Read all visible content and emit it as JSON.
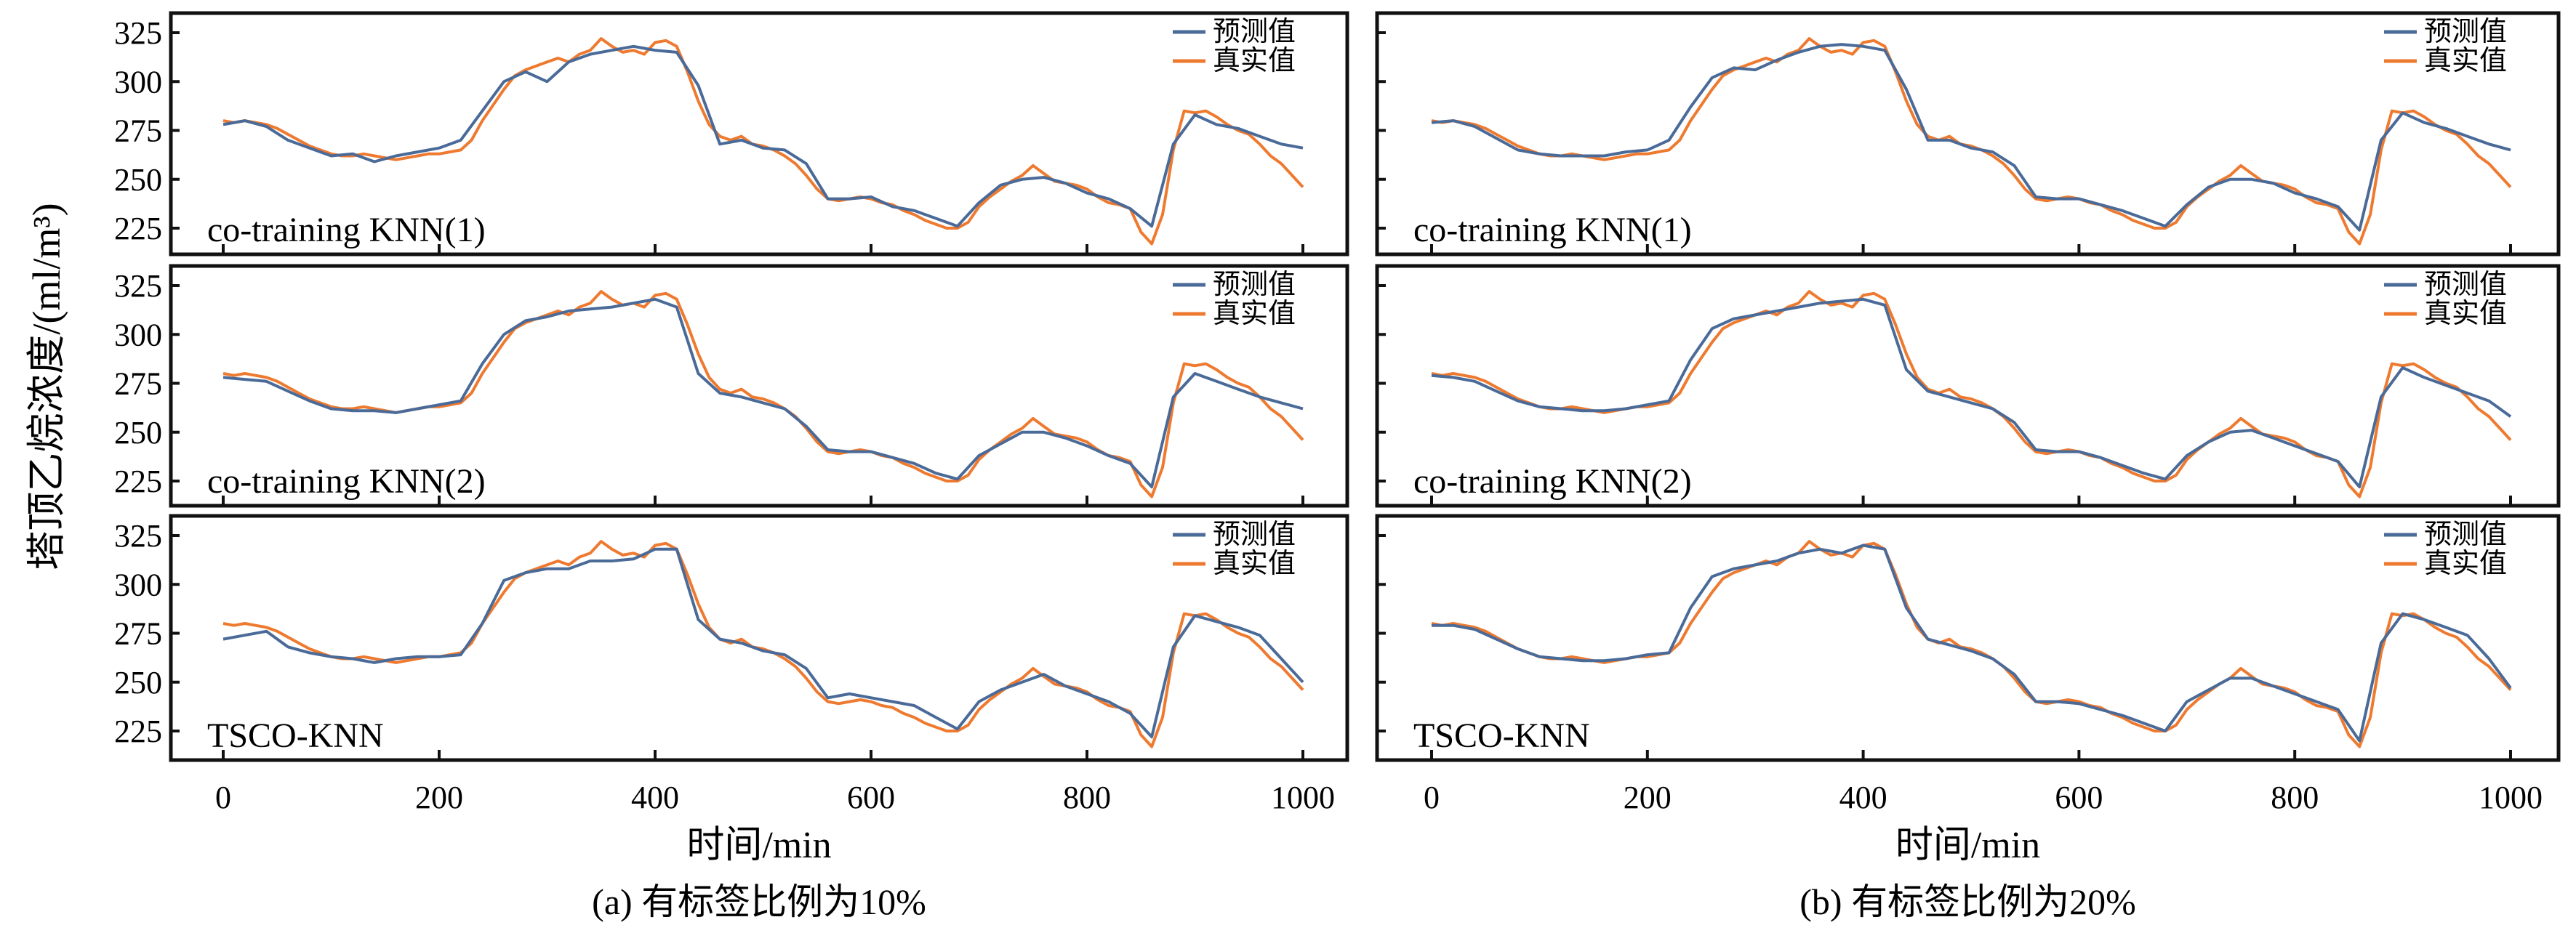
{
  "chart_data": [
    {
      "type": "line",
      "figure": "a",
      "panel_label": "co-training KNN(1)",
      "pred_key": "a1"
    },
    {
      "type": "line",
      "figure": "a",
      "panel_label": "co-training KNN(2)",
      "pred_key": "a2"
    },
    {
      "type": "line",
      "figure": "a",
      "panel_label": "TSCO-KNN",
      "pred_key": "a3"
    },
    {
      "type": "line",
      "figure": "b",
      "panel_label": "co-training KNN(1)",
      "pred_key": "b1"
    },
    {
      "type": "line",
      "figure": "b",
      "panel_label": "co-training KNN(2)",
      "pred_key": "b2"
    },
    {
      "type": "line",
      "figure": "b",
      "panel_label": "TSCO-KNN",
      "pred_key": "b3"
    }
  ],
  "figures": {
    "a": {
      "caption": "(a) 有标签比例为10%",
      "xlabel": "时间/min"
    },
    "b": {
      "caption": "(b) 有标签比例为20%",
      "xlabel": "时间/min"
    }
  },
  "ylabel": "塔顶乙烷浓度/(ml/m³)",
  "legend": {
    "pred": "预测值",
    "true": "真实值"
  },
  "colors": {
    "pred": "#4a6a98",
    "true": "#ee7a30"
  },
  "xlim": [
    0,
    1000
  ],
  "ylim": [
    213,
    333
  ],
  "xticks": [
    0,
    200,
    400,
    600,
    800,
    1000
  ],
  "yticks": [
    225,
    250,
    275,
    300,
    325
  ],
  "true_x_step": 10,
  "true_values": [
    280,
    279,
    280,
    279,
    278,
    276,
    273,
    270,
    267,
    265,
    263,
    262,
    262,
    263,
    262,
    261,
    260,
    261,
    262,
    263,
    263,
    264,
    265,
    270,
    280,
    288,
    296,
    303,
    306,
    308,
    310,
    312,
    310,
    314,
    316,
    322,
    318,
    315,
    316,
    314,
    320,
    321,
    318,
    305,
    290,
    278,
    272,
    270,
    272,
    268,
    267,
    265,
    262,
    258,
    252,
    245,
    240,
    239,
    240,
    241,
    240,
    238,
    237,
    234,
    232,
    229,
    227,
    225,
    225,
    228,
    236,
    241,
    245,
    249,
    252,
    257,
    253,
    249,
    248,
    247,
    245,
    241,
    238,
    237,
    235,
    223,
    217,
    232,
    265,
    285,
    284,
    285,
    282,
    278,
    275,
    273,
    268,
    262,
    258,
    252,
    246
  ],
  "pred_x_step": 20,
  "pred_values": {
    "a1": [
      278,
      280,
      277,
      270,
      266,
      262,
      263,
      259,
      262,
      264,
      266,
      270,
      285,
      300,
      305,
      300,
      310,
      314,
      316,
      318,
      316,
      315,
      298,
      268,
      270,
      266,
      265,
      258,
      240,
      240,
      241,
      236,
      234,
      230,
      226,
      238,
      247,
      250,
      251,
      248,
      243,
      240,
      235,
      226,
      268,
      283,
      278,
      276,
      272,
      268,
      266
    ],
    "a2": [
      278,
      277,
      276,
      271,
      266,
      262,
      261,
      261,
      260,
      262,
      264,
      266,
      285,
      300,
      307,
      309,
      312,
      313,
      314,
      316,
      318,
      314,
      280,
      270,
      268,
      265,
      262,
      253,
      241,
      240,
      240,
      237,
      234,
      229,
      226,
      238,
      244,
      250,
      250,
      247,
      243,
      238,
      234,
      222,
      268,
      280,
      276,
      272,
      268,
      265,
      262
    ],
    "a3": [
      272,
      274,
      276,
      268,
      265,
      263,
      262,
      260,
      262,
      263,
      263,
      264,
      280,
      302,
      306,
      308,
      308,
      312,
      312,
      313,
      318,
      318,
      282,
      272,
      270,
      266,
      264,
      257,
      242,
      244,
      242,
      240,
      238,
      232,
      226,
      240,
      246,
      250,
      254,
      248,
      244,
      240,
      234,
      222,
      268,
      284,
      281,
      278,
      274,
      262,
      250
    ],
    "b1": [
      279,
      280,
      277,
      271,
      265,
      263,
      262,
      262,
      262,
      264,
      265,
      270,
      287,
      302,
      307,
      306,
      311,
      315,
      318,
      319,
      318,
      316,
      296,
      270,
      270,
      266,
      264,
      257,
      241,
      240,
      240,
      237,
      234,
      230,
      226,
      237,
      246,
      250,
      250,
      248,
      243,
      240,
      236,
      224,
      270,
      284,
      279,
      276,
      272,
      268,
      265
    ],
    "b2": [
      279,
      278,
      276,
      271,
      266,
      263,
      262,
      261,
      261,
      262,
      264,
      266,
      287,
      303,
      308,
      310,
      312,
      314,
      316,
      317,
      318,
      315,
      282,
      271,
      268,
      265,
      262,
      255,
      241,
      240,
      240,
      237,
      233,
      229,
      226,
      238,
      245,
      250,
      251,
      247,
      243,
      239,
      235,
      222,
      268,
      283,
      278,
      274,
      270,
      266,
      258
    ],
    "b3": [
      279,
      279,
      277,
      272,
      267,
      263,
      262,
      261,
      261,
      262,
      264,
      265,
      288,
      304,
      308,
      310,
      312,
      316,
      318,
      316,
      320,
      318,
      288,
      272,
      269,
      266,
      262,
      254,
      240,
      240,
      239,
      236,
      233,
      229,
      225,
      240,
      246,
      252,
      252,
      248,
      244,
      240,
      236,
      220,
      270,
      285,
      282,
      278,
      274,
      262,
      247
    ]
  }
}
